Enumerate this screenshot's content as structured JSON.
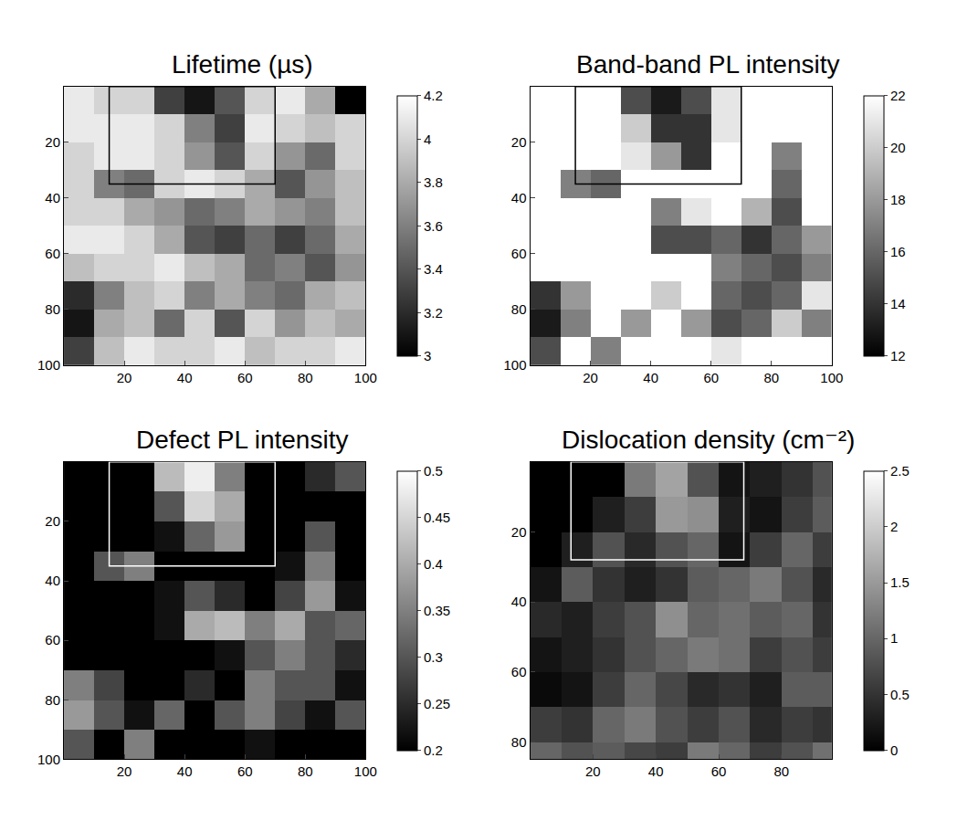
{
  "chart_data": [
    {
      "type": "heatmap",
      "title": "Lifetime (µs)",
      "x": [
        5,
        15,
        25,
        35,
        45,
        55,
        65,
        75,
        85,
        95
      ],
      "y": [
        5,
        15,
        25,
        35,
        45,
        55,
        65,
        75,
        85,
        95
      ],
      "xlim": [
        0,
        100
      ],
      "ylim": [
        100,
        0
      ],
      "xticks": [
        20,
        40,
        60,
        80,
        100
      ],
      "yticks": [
        20,
        40,
        60,
        80,
        100
      ],
      "cells": [
        [
          4.1,
          4.0,
          4.0,
          3.3,
          3.1,
          3.4,
          4.0,
          4.1,
          3.8,
          3.0
        ],
        [
          4.1,
          4.1,
          4.1,
          4.0,
          3.6,
          3.3,
          4.1,
          4.0,
          3.9,
          4.0
        ],
        [
          4.0,
          4.1,
          4.1,
          4.0,
          3.7,
          3.4,
          4.0,
          3.7,
          3.5,
          4.0
        ],
        [
          4.0,
          3.6,
          3.5,
          4.0,
          4.1,
          4.0,
          3.8,
          3.4,
          3.7,
          3.9
        ],
        [
          4.0,
          4.0,
          3.8,
          3.7,
          3.5,
          3.6,
          3.8,
          3.7,
          3.6,
          3.9
        ],
        [
          4.1,
          4.1,
          4.0,
          3.8,
          3.4,
          3.3,
          3.5,
          3.3,
          3.5,
          3.8
        ],
        [
          3.9,
          4.0,
          4.0,
          4.1,
          3.9,
          3.8,
          3.5,
          3.6,
          3.4,
          3.7
        ],
        [
          3.2,
          3.6,
          3.9,
          4.0,
          3.6,
          3.8,
          3.6,
          3.5,
          3.8,
          3.9
        ],
        [
          3.1,
          3.8,
          3.9,
          3.5,
          4.0,
          3.4,
          4.0,
          3.7,
          3.9,
          3.8
        ],
        [
          3.3,
          3.9,
          4.1,
          4.0,
          4.0,
          4.1,
          3.9,
          4.0,
          4.0,
          4.1
        ]
      ],
      "colorbar": {
        "range": [
          3,
          4.2
        ],
        "ticks": [
          3,
          3.2,
          3.4,
          3.6,
          3.8,
          4,
          4.2
        ]
      },
      "box": {
        "x0": 15,
        "x1": 70,
        "y0": 0,
        "y1": 35
      }
    },
    {
      "type": "heatmap",
      "title": "Band-band PL intensity",
      "x": [
        5,
        15,
        25,
        35,
        45,
        55,
        65,
        75,
        85,
        95
      ],
      "y": [
        5,
        15,
        25,
        35,
        45,
        55,
        65,
        75,
        85,
        95
      ],
      "xlim": [
        0,
        100
      ],
      "ylim": [
        100,
        0
      ],
      "xticks": [
        20,
        40,
        60,
        80,
        100
      ],
      "yticks": [
        20,
        40,
        60,
        80,
        100
      ],
      "cells": [
        [
          22,
          22,
          22,
          15,
          13,
          15,
          21,
          22,
          22,
          22
        ],
        [
          22,
          22,
          22,
          20,
          14,
          14,
          21,
          22,
          22,
          22
        ],
        [
          22,
          22,
          22,
          21,
          18,
          14,
          22,
          22,
          17,
          22
        ],
        [
          22,
          17,
          16,
          22,
          22,
          22,
          22,
          22,
          16,
          22
        ],
        [
          22,
          22,
          22,
          22,
          17,
          21,
          22,
          19,
          15,
          22
        ],
        [
          22,
          22,
          22,
          22,
          15,
          15,
          16,
          14,
          16,
          18
        ],
        [
          22,
          22,
          22,
          22,
          22,
          22,
          17,
          16,
          15,
          17
        ],
        [
          14,
          18,
          22,
          22,
          20,
          22,
          16,
          15,
          16,
          21
        ],
        [
          13,
          17,
          22,
          18,
          22,
          18,
          15,
          16,
          20,
          17
        ],
        [
          15,
          22,
          17,
          22,
          22,
          22,
          21,
          22,
          22,
          22
        ]
      ],
      "colorbar": {
        "range": [
          12,
          22
        ],
        "ticks": [
          12,
          14,
          16,
          18,
          20,
          22
        ]
      },
      "box": {
        "x0": 15,
        "x1": 70,
        "y0": 0,
        "y1": 35
      }
    },
    {
      "type": "heatmap",
      "title": "Defect PL intensity",
      "x": [
        5,
        15,
        25,
        35,
        45,
        55,
        65,
        75,
        85,
        95
      ],
      "y": [
        5,
        15,
        25,
        35,
        45,
        55,
        65,
        75,
        85,
        95
      ],
      "xlim": [
        0,
        100
      ],
      "ylim": [
        100,
        0
      ],
      "xticks": [
        20,
        40,
        60,
        80,
        100
      ],
      "yticks": [
        20,
        40,
        60,
        80,
        100
      ],
      "cells": [
        [
          0.2,
          0.2,
          0.2,
          0.42,
          0.48,
          0.35,
          0.2,
          0.2,
          0.25,
          0.3
        ],
        [
          0.2,
          0.2,
          0.2,
          0.3,
          0.45,
          0.4,
          0.2,
          0.2,
          0.2,
          0.2
        ],
        [
          0.2,
          0.2,
          0.2,
          0.22,
          0.32,
          0.38,
          0.2,
          0.2,
          0.3,
          0.2
        ],
        [
          0.2,
          0.3,
          0.35,
          0.2,
          0.2,
          0.2,
          0.2,
          0.22,
          0.35,
          0.2
        ],
        [
          0.2,
          0.2,
          0.2,
          0.22,
          0.3,
          0.25,
          0.2,
          0.28,
          0.38,
          0.22
        ],
        [
          0.2,
          0.2,
          0.2,
          0.22,
          0.4,
          0.42,
          0.35,
          0.4,
          0.3,
          0.32
        ],
        [
          0.2,
          0.2,
          0.2,
          0.2,
          0.2,
          0.22,
          0.3,
          0.35,
          0.3,
          0.25
        ],
        [
          0.35,
          0.28,
          0.2,
          0.2,
          0.25,
          0.2,
          0.35,
          0.3,
          0.3,
          0.22
        ],
        [
          0.38,
          0.3,
          0.22,
          0.32,
          0.2,
          0.3,
          0.35,
          0.28,
          0.22,
          0.3
        ],
        [
          0.3,
          0.2,
          0.35,
          0.2,
          0.2,
          0.2,
          0.22,
          0.2,
          0.2,
          0.2
        ]
      ],
      "colorbar": {
        "range": [
          0.2,
          0.5
        ],
        "ticks": [
          0.2,
          0.25,
          0.3,
          0.35,
          0.4,
          0.45,
          0.5
        ]
      },
      "box": {
        "x0": 15,
        "x1": 70,
        "y0": 0,
        "y1": 35
      }
    },
    {
      "type": "heatmap",
      "title": "Dislocation density (cm⁻²)",
      "x": [
        5,
        15,
        25,
        35,
        45,
        55,
        65,
        75,
        85,
        95
      ],
      "y": [
        5,
        15,
        25,
        35,
        45,
        55,
        65,
        75,
        85
      ],
      "xlim": [
        0,
        96
      ],
      "ylim": [
        85,
        0
      ],
      "xticks": [
        20,
        40,
        60,
        80
      ],
      "yticks": [
        20,
        40,
        60,
        80
      ],
      "cells": [
        [
          0,
          0,
          0,
          1.2,
          1.6,
          0.8,
          0.2,
          0.3,
          0.5,
          0.8
        ],
        [
          0,
          0,
          0.3,
          0.6,
          1.5,
          1.4,
          0.3,
          0.2,
          0.6,
          0.9
        ],
        [
          0,
          0.3,
          0.8,
          0.4,
          0.8,
          1.0,
          0.2,
          0.6,
          1.0,
          0.6
        ],
        [
          0.2,
          0.9,
          0.5,
          0.3,
          0.5,
          0.9,
          1.0,
          1.2,
          0.8,
          0.4
        ],
        [
          0.4,
          0.3,
          0.6,
          0.8,
          1.4,
          1.0,
          1.1,
          0.9,
          1.0,
          0.5
        ],
        [
          0.2,
          0.3,
          0.5,
          0.8,
          1.0,
          1.2,
          1.1,
          0.6,
          0.8,
          0.6
        ],
        [
          0.1,
          0.2,
          0.6,
          1.0,
          0.7,
          0.4,
          0.5,
          0.3,
          0.9,
          0.9
        ],
        [
          0.6,
          0.5,
          1.0,
          1.2,
          0.8,
          0.6,
          0.8,
          0.4,
          0.6,
          0.5
        ],
        [
          1.0,
          0.8,
          0.9,
          0.7,
          0.6,
          1.2,
          1.0,
          0.6,
          0.8,
          1.1
        ]
      ],
      "colorbar": {
        "range": [
          0,
          2.5
        ],
        "ticks": [
          0,
          0.5,
          1,
          1.5,
          2,
          2.5
        ]
      },
      "box": {
        "x0": 13,
        "x1": 68,
        "y0": 0,
        "y1": 28
      }
    }
  ]
}
